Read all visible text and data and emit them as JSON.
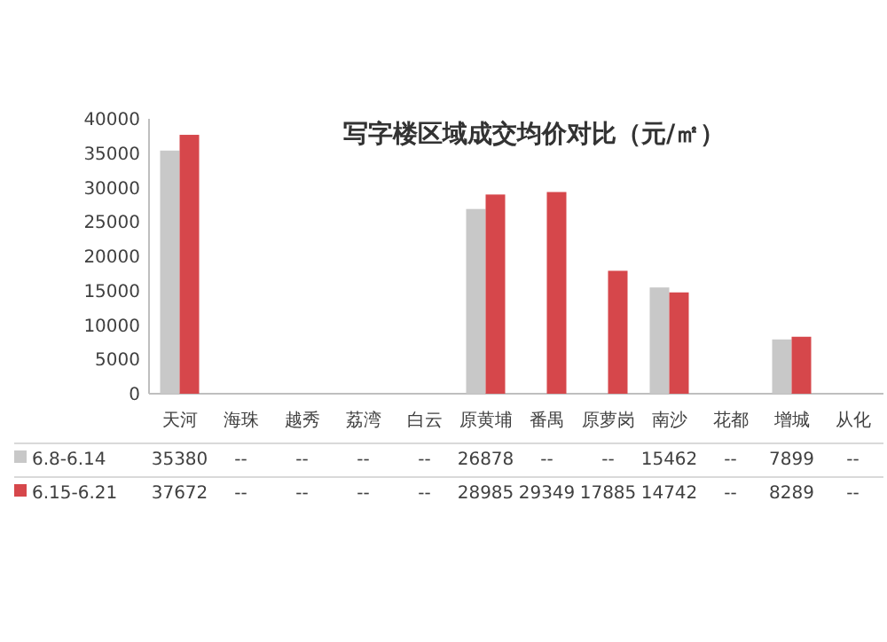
{
  "chart_data": {
    "type": "bar",
    "title": "写字楼区域成交均价对比（元/㎡）",
    "categories": [
      "天河",
      "海珠",
      "越秀",
      "荔湾",
      "白云",
      "原黄埔",
      "番禺",
      "原萝岗",
      "南沙",
      "花都",
      "增城",
      "从化"
    ],
    "series": [
      {
        "name": "6.8-6.14",
        "color": "#c8c8c8",
        "values": [
          35380,
          null,
          null,
          null,
          null,
          26878,
          null,
          null,
          15462,
          null,
          7899,
          null
        ],
        "value_labels": [
          "35380",
          "--",
          "--",
          "--",
          "--",
          "26878",
          "--",
          "--",
          "15462",
          "--",
          "7899",
          "--"
        ]
      },
      {
        "name": "6.15-6.21",
        "color": "#d6474b",
        "values": [
          37672,
          null,
          null,
          null,
          null,
          28985,
          29349,
          17885,
          14742,
          null,
          8289,
          null
        ],
        "value_labels": [
          "37672",
          "--",
          "--",
          "--",
          "--",
          "28985",
          "29349",
          "17885",
          "14742",
          "--",
          "8289",
          "--"
        ]
      }
    ],
    "ylim": [
      0,
      40000
    ],
    "yticks": [
      0,
      5000,
      10000,
      15000,
      20000,
      25000,
      30000,
      35000,
      40000
    ],
    "legend": "bottom"
  }
}
